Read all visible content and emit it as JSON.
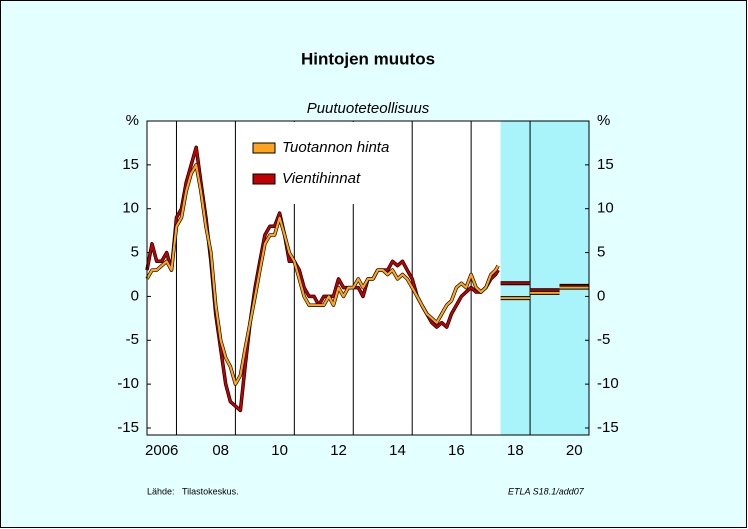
{
  "chart_data": {
    "type": "line",
    "title": "Hintojen muutos",
    "subtitle": "Puutuoteteollisuus",
    "x": [
      2006,
      2006.17,
      2006.33,
      2006.5,
      2006.67,
      2006.83,
      2007,
      2007.17,
      2007.33,
      2007.5,
      2007.67,
      2007.83,
      2008,
      2008.17,
      2008.33,
      2008.5,
      2008.67,
      2008.83,
      2009,
      2009.17,
      2009.33,
      2009.5,
      2009.67,
      2009.83,
      2010,
      2010.17,
      2010.33,
      2010.5,
      2010.67,
      2010.83,
      2011,
      2011.17,
      2011.33,
      2011.5,
      2011.67,
      2011.83,
      2012,
      2012.17,
      2012.33,
      2012.5,
      2012.67,
      2012.83,
      2013,
      2013.17,
      2013.33,
      2013.5,
      2013.67,
      2013.83,
      2014,
      2014.17,
      2014.33,
      2014.5,
      2014.67,
      2014.83,
      2015,
      2015.17,
      2015.33,
      2015.5,
      2015.67,
      2015.83,
      2016,
      2016.17,
      2016.33,
      2016.5,
      2016.67,
      2016.83,
      2017,
      2017.17,
      2017.33,
      2017.5,
      2017.67,
      2017.83,
      2017.92
    ],
    "series": [
      {
        "name": "Tuotannon hinta",
        "color": "#ffa41c",
        "values": [
          2,
          3,
          3,
          3.5,
          4,
          3,
          8,
          9,
          12,
          14,
          15,
          12,
          8,
          5,
          -1,
          -5,
          -7,
          -8,
          -10,
          -9,
          -6,
          -3,
          0,
          3,
          6,
          7,
          7,
          9,
          7,
          5,
          4,
          2,
          0,
          -1,
          -1,
          -1,
          -1,
          0,
          -1,
          1,
          0,
          1,
          1,
          2,
          1,
          2,
          2,
          3,
          3,
          2.5,
          3,
          2,
          2.5,
          2,
          1,
          0,
          -1,
          -2,
          -2.5,
          -3,
          -2,
          -1,
          -0.5,
          1,
          1.5,
          1,
          2.5,
          1,
          0.5,
          1,
          2.5,
          3,
          3.5
        ],
        "forecast": [
          -0.2,
          0.4,
          1.0
        ]
      },
      {
        "name": "Vientihinnat",
        "color": "#c00000",
        "values": [
          3,
          6,
          4,
          4,
          5,
          3,
          9,
          10,
          13,
          15,
          17,
          13,
          9,
          4,
          -2,
          -6,
          -10,
          -12,
          -12.5,
          -13,
          -8,
          -3,
          1,
          4,
          7,
          8,
          8,
          9.5,
          7,
          4,
          4,
          3,
          1,
          0,
          0,
          -1,
          0,
          0,
          0,
          2,
          1,
          1,
          1,
          1,
          0,
          2,
          2,
          3,
          3,
          3,
          4,
          3.5,
          4,
          3,
          2,
          0,
          -1,
          -2,
          -3,
          -3.5,
          -3,
          -3.5,
          -2,
          -1,
          0,
          0.5,
          1,
          0.5,
          0.5,
          1,
          2,
          2.5,
          3
        ],
        "forecast": [
          1.5,
          0.7,
          1.2
        ]
      }
    ],
    "forecast_x": [
      2018,
      2019,
      2020
    ],
    "forecast_region": [
      2018,
      2021
    ],
    "xlim": [
      2006,
      2021
    ],
    "xticks": [
      {
        "value": 2006.5,
        "label": "2006"
      },
      {
        "value": 2008.5,
        "label": "08"
      },
      {
        "value": 2010.5,
        "label": "10"
      },
      {
        "value": 2012.5,
        "label": "12"
      },
      {
        "value": 2014.5,
        "label": "14"
      },
      {
        "value": 2016.5,
        "label": "16"
      },
      {
        "value": 2018.5,
        "label": "18"
      },
      {
        "value": 2020.5,
        "label": "20"
      }
    ],
    "xgrid": [
      2007,
      2009,
      2011,
      2013,
      2015,
      2017,
      2019
    ],
    "ylim": [
      -15.8,
      20
    ],
    "yticks": [
      -15,
      -10,
      -5,
      0,
      5,
      10,
      15,
      {
        "value": 20,
        "label": "%"
      }
    ],
    "source_label": "Lähde:",
    "source": "Tilastokeskus.",
    "code": "ETLA S18.1/add07"
  }
}
